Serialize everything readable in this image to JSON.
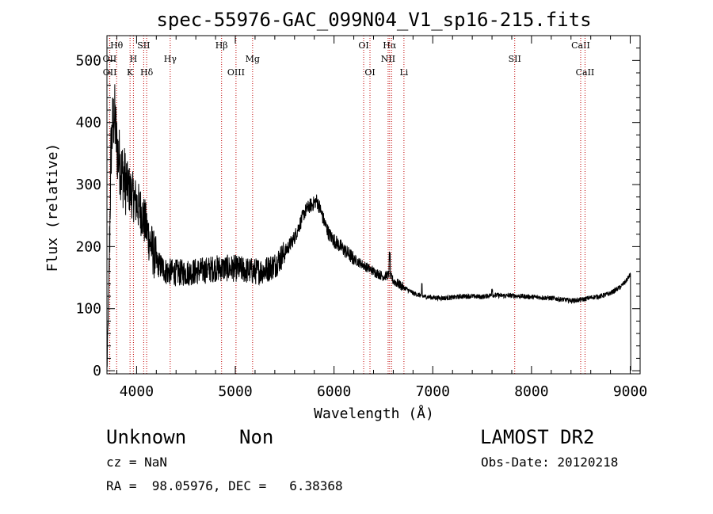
{
  "chart_data": {
    "type": "line",
    "title": "spec-55976-GAC_099N04_V1_sp16-215.fits",
    "xlabel": "Wavelength (Å)",
    "ylabel": "Flux (relative)",
    "xlim": [
      3700,
      9100
    ],
    "ylim": [
      -5,
      540
    ],
    "x_ticks": [
      4000,
      5000,
      6000,
      7000,
      8000,
      9000
    ],
    "y_ticks": [
      0,
      100,
      200,
      300,
      400,
      500
    ],
    "grid": false,
    "line_color": "#000000",
    "marker_color": "#c00000",
    "spectrum_trend": {
      "x": [
        3700,
        3720,
        3740,
        3760,
        3780,
        3800,
        3850,
        3900,
        3950,
        4000,
        4050,
        4100,
        4150,
        4200,
        4300,
        4400,
        4500,
        4600,
        4700,
        4800,
        4900,
        5000,
        5100,
        5200,
        5300,
        5400,
        5500,
        5600,
        5650,
        5700,
        5750,
        5800,
        5820,
        5850,
        5900,
        5950,
        6000,
        6100,
        6200,
        6300,
        6400,
        6500,
        6560,
        6600,
        6700,
        6800,
        6900,
        7000,
        7100,
        7200,
        7300,
        7400,
        7500,
        7600,
        7700,
        7800,
        7900,
        8000,
        8100,
        8200,
        8300,
        8400,
        8500,
        8600,
        8700,
        8800,
        8900,
        8960,
        9000,
        9004,
        9010
      ],
      "y": [
        0,
        130,
        350,
        400,
        410,
        360,
        320,
        300,
        285,
        270,
        255,
        230,
        200,
        175,
        160,
        158,
        158,
        160,
        162,
        165,
        165,
        165,
        162,
        160,
        162,
        170,
        190,
        215,
        235,
        255,
        265,
        270,
        275,
        265,
        240,
        220,
        210,
        195,
        180,
        170,
        160,
        152,
        155,
        145,
        135,
        125,
        120,
        118,
        117,
        118,
        120,
        120,
        119,
        122,
        121,
        121,
        120,
        119,
        118,
        117,
        115,
        113,
        114,
        118,
        120,
        125,
        135,
        145,
        155,
        150,
        0
      ]
    },
    "series": [
      {
        "values": []
      }
    ],
    "line_markers": [
      {
        "label": "Hθ",
        "x": 3798,
        "row": 1
      },
      {
        "label": "OII",
        "x": 3727,
        "row": 2
      },
      {
        "label": "OII",
        "x": 3729,
        "row": 3
      },
      {
        "label": "SII",
        "x": 4072,
        "row": 1
      },
      {
        "label": "H",
        "x": 3968,
        "row": 2
      },
      {
        "label": "K",
        "x": 3934,
        "row": 3
      },
      {
        "label": "Hδ",
        "x": 4102,
        "row": 3
      },
      {
        "label": "Hγ",
        "x": 4341,
        "row": 2
      },
      {
        "label": "Hβ",
        "x": 4861,
        "row": 1
      },
      {
        "label": "OIII",
        "x": 5007,
        "row": 3
      },
      {
        "label": "Mg",
        "x": 5175,
        "row": 2
      },
      {
        "label": "OI",
        "x": 6300,
        "row": 1
      },
      {
        "label": "OI",
        "x": 6364,
        "row": 3
      },
      {
        "label": "Hα",
        "x": 6563,
        "row": 1
      },
      {
        "label": "NII",
        "x": 6548,
        "row": 2
      },
      {
        "label": "NII",
        "x": 6583,
        "row": 2,
        "hidden": true
      },
      {
        "label": "Li",
        "x": 6708,
        "row": 3
      },
      {
        "label": "SII",
        "x": 7830,
        "row": 2
      },
      {
        "label": "CaII",
        "x": 8498,
        "row": 1
      },
      {
        "label": "CaII",
        "x": 8542,
        "row": 3
      }
    ]
  },
  "info": {
    "object_class": "Unknown",
    "subclass": "Non",
    "survey": "LAMOST DR2",
    "cz": "cz = NaN",
    "obs_date": "Obs-Date: 20120218",
    "coords": "RA =  98.05976, DEC =   6.38368"
  }
}
